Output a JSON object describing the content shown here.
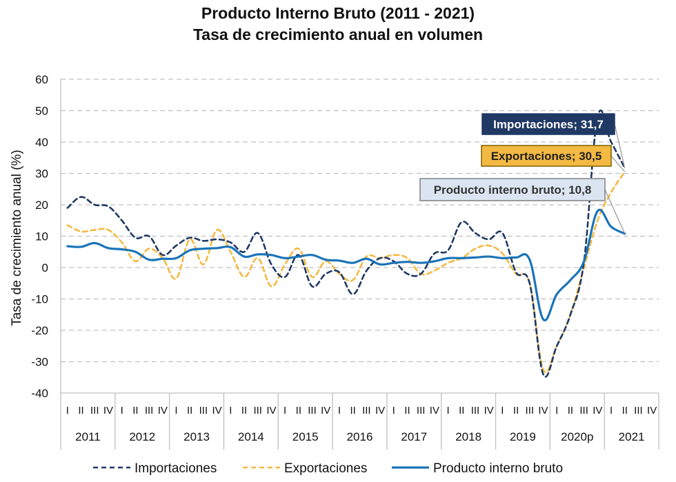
{
  "chart_data": {
    "type": "line",
    "title": "Producto Interno Bruto (2011 - 2021)",
    "subtitle": "Tasa de crecimiento anual en volumen",
    "xlabel": "",
    "ylabel": "Tasa de crecimiento anual (%)",
    "ylim": [
      -40,
      60
    ],
    "yticks": [
      60,
      50,
      40,
      30,
      20,
      10,
      0,
      -10,
      -20,
      -30,
      -40
    ],
    "grid": true,
    "years": [
      "2011",
      "2012",
      "2013",
      "2014",
      "2015",
      "2016",
      "2017",
      "2018",
      "2019",
      "2020p",
      "2021"
    ],
    "quarters": [
      "I",
      "II",
      "III",
      "IV"
    ],
    "series": [
      {
        "name": "Importaciones",
        "color": "#1f3864",
        "style": "dashed",
        "values": [
          19.0,
          22.5,
          20.0,
          19.5,
          15.0,
          9.5,
          10.0,
          4.0,
          7.0,
          9.5,
          8.5,
          9.0,
          8.0,
          5.0,
          11.0,
          1.0,
          -3.0,
          4.0,
          -6.0,
          -2.0,
          -1.5,
          -8.5,
          -1.0,
          3.0,
          2.0,
          -2.0,
          -2.0,
          4.5,
          5.5,
          14.5,
          11.0,
          9.0,
          11.0,
          -1.5,
          -5.0,
          -34.0,
          -25.0,
          -15.0,
          2.0,
          48.0,
          40.0,
          31.7
        ]
      },
      {
        "name": "Exportaciones",
        "color": "#f4b942",
        "style": "dashed",
        "values": [
          13.5,
          11.5,
          12.0,
          12.0,
          8.0,
          2.0,
          6.0,
          3.0,
          -3.5,
          9.0,
          1.0,
          12.0,
          5.0,
          -3.0,
          3.0,
          -6.0,
          1.0,
          6.0,
          -3.0,
          2.0,
          -2.0,
          -4.0,
          3.5,
          3.0,
          4.0,
          3.0,
          -2.0,
          -1.0,
          1.5,
          3.0,
          6.0,
          7.0,
          4.5,
          -2.0,
          -5.0,
          -32.5,
          -25.0,
          -15.0,
          0.0,
          15.0,
          24.0,
          30.5
        ]
      },
      {
        "name": "Producto interno bruto",
        "color": "#1a73b8",
        "style": "solid",
        "values": [
          6.8,
          6.6,
          7.8,
          6.2,
          5.8,
          5.0,
          2.5,
          2.8,
          3.0,
          5.5,
          6.0,
          6.2,
          6.5,
          3.5,
          4.2,
          4.0,
          3.0,
          3.5,
          4.0,
          2.5,
          2.2,
          1.5,
          2.8,
          1.0,
          1.5,
          1.8,
          1.5,
          2.0,
          3.0,
          3.0,
          3.2,
          3.5,
          3.0,
          3.2,
          2.5,
          -16.5,
          -8.5,
          -4.0,
          2.0,
          18.0,
          13.0,
          10.8
        ]
      }
    ],
    "callouts": [
      {
        "text": "Importaciones; 31,7",
        "series": 0,
        "bg": "#1f3864",
        "fg": "#ffffff",
        "border": "#1f3864"
      },
      {
        "text": "Exportaciones; 30,5",
        "series": 1,
        "bg": "#f4b942",
        "fg": "#1f1f1f",
        "border": "#7f6000"
      },
      {
        "text": "Producto interno bruto; 10,8",
        "series": 2,
        "bg": "#dbe5f1",
        "fg": "#333333",
        "border": "#7f7f7f"
      }
    ],
    "legend": [
      "Importaciones",
      "Exportaciones",
      "Producto interno bruto"
    ],
    "legend_position": "bottom"
  }
}
